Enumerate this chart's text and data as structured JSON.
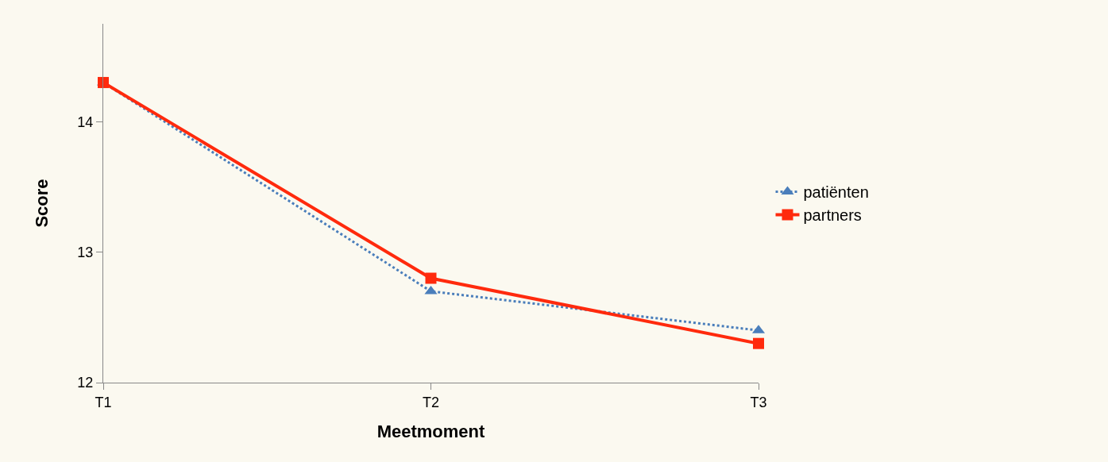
{
  "chart_data": {
    "type": "line",
    "xlabel": "Meetmoment",
    "ylabel": "Score",
    "categories": [
      "T1",
      "T2",
      "T3"
    ],
    "series": [
      {
        "name": "patiënten",
        "color": "#4a7ebb",
        "values": [
          14.3,
          12.7,
          12.4
        ],
        "marker": "triangle",
        "line_style": "dotted"
      },
      {
        "name": "partners",
        "color": "#ff2a0d",
        "values": [
          14.3,
          12.8,
          12.3
        ],
        "marker": "square",
        "line_style": "solid"
      }
    ],
    "ylim": [
      12,
      14.75
    ],
    "yticks": [
      12,
      13,
      14
    ],
    "grid": false,
    "legend": "right"
  }
}
